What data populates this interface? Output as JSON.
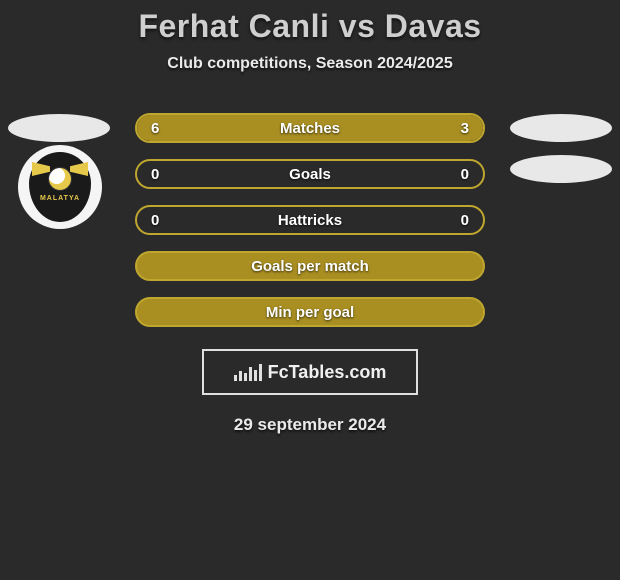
{
  "title": "Ferhat Canli vs Davas",
  "subtitle": "Club competitions, Season 2024/2025",
  "accent_color": "#a98f22",
  "accent_border": "#bfa62e",
  "text_color": "#eeeeee",
  "background_color": "#2a2a2a",
  "date": "29 september 2024",
  "branding": "FcTables.com",
  "club_left_name": "MALATYA",
  "rows": [
    {
      "type": "split",
      "label": "Matches",
      "left": "6",
      "right": "3",
      "left_pct": 66.6,
      "right_pct": 33.4
    },
    {
      "type": "split",
      "label": "Goals",
      "left": "0",
      "right": "0",
      "left_pct": 0,
      "right_pct": 0
    },
    {
      "type": "split",
      "label": "Hattricks",
      "left": "0",
      "right": "0",
      "left_pct": 0,
      "right_pct": 0
    },
    {
      "type": "single",
      "label": "Goals per match"
    },
    {
      "type": "single",
      "label": "Min per goal"
    }
  ]
}
